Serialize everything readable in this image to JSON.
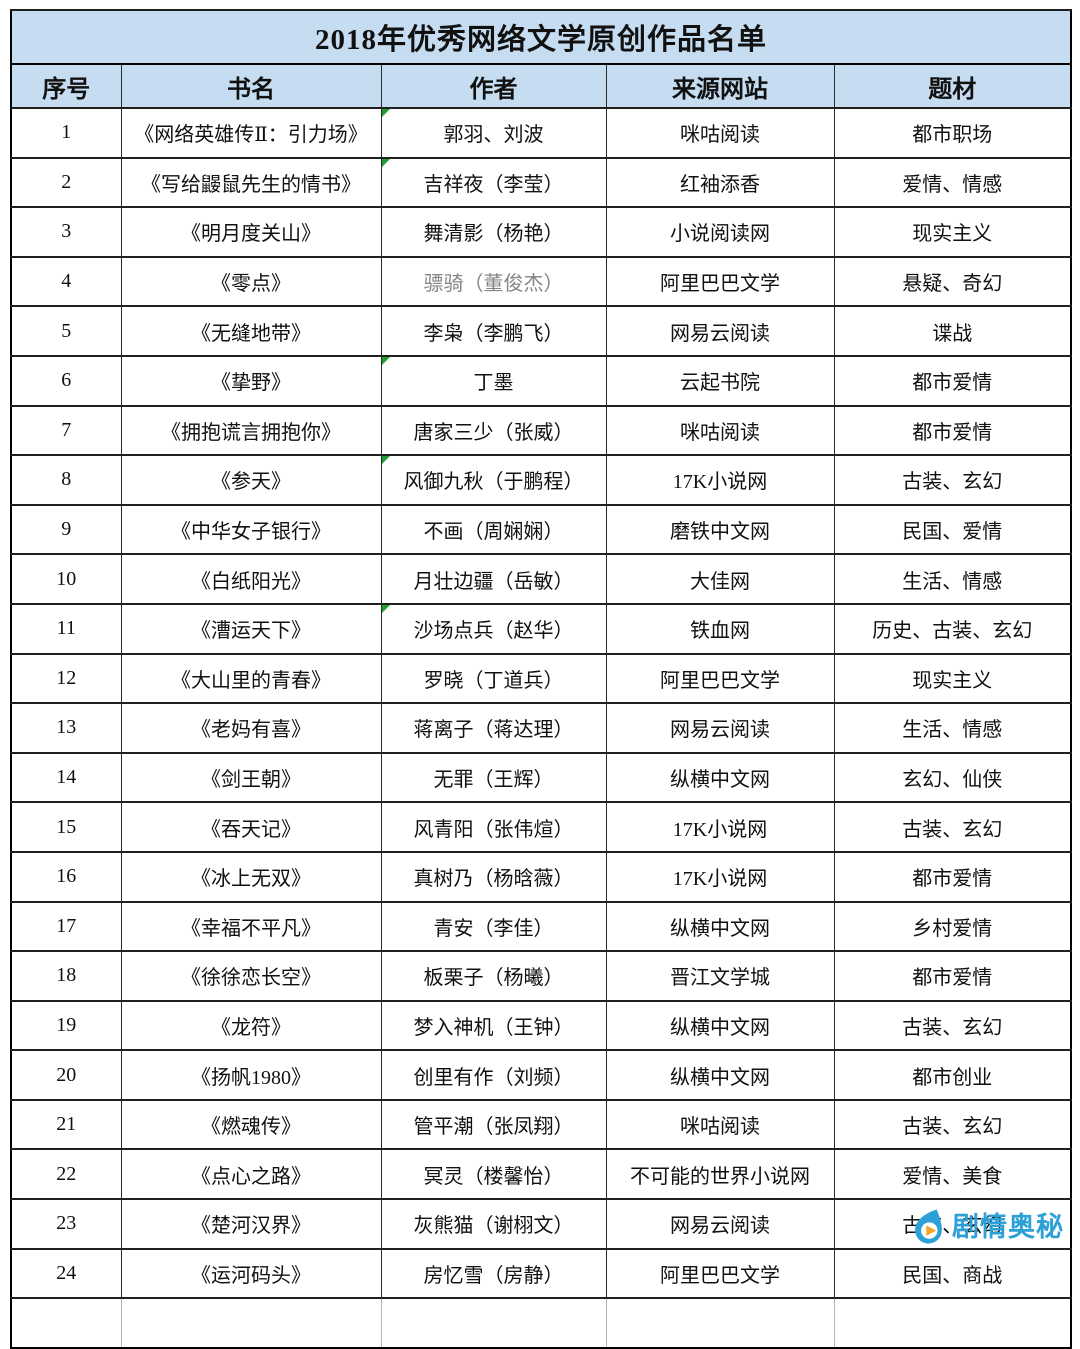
{
  "table": {
    "title": "2018年优秀网络文学原创作品名单",
    "header_bg": "#c6dcf0",
    "border_color": "#000000",
    "columns": [
      "序号",
      "书名",
      "作者",
      "来源网站",
      "题材"
    ],
    "rows": [
      {
        "no": "1",
        "book": "《网络英雄传Ⅱ：引力场》",
        "author": "郭羽、刘波",
        "site": "咪咕阅读",
        "genre": "都市职场",
        "tri": true
      },
      {
        "no": "2",
        "book": "《写给鼹鼠先生的情书》",
        "author": "吉祥夜（李莹）",
        "site": "红袖添香",
        "genre": "爱情、情感",
        "tri": true
      },
      {
        "no": "3",
        "book": "《明月度关山》",
        "author": "舞清影（杨艳）",
        "site": "小说阅读网",
        "genre": "现实主义"
      },
      {
        "no": "4",
        "book": "《零点》",
        "author": "骠骑（董俊杰）",
        "site": "阿里巴巴文学",
        "genre": "悬疑、奇幻",
        "muted": true
      },
      {
        "no": "5",
        "book": "《无缝地带》",
        "author": "李枭（李鹏飞）",
        "site": "网易云阅读",
        "genre": "谍战"
      },
      {
        "no": "6",
        "book": "《挚野》",
        "author": "丁墨",
        "site": "云起书院",
        "genre": "都市爱情",
        "tri": true
      },
      {
        "no": "7",
        "book": "《拥抱谎言拥抱你》",
        "author": "唐家三少（张威）",
        "site": "咪咕阅读",
        "genre": "都市爱情"
      },
      {
        "no": "8",
        "book": "《参天》",
        "author": "风御九秋（于鹏程）",
        "site": "17K小说网",
        "genre": "古装、玄幻",
        "tri": true
      },
      {
        "no": "9",
        "book": "《中华女子银行》",
        "author": "不画（周娴娴）",
        "site": "磨铁中文网",
        "genre": "民国、爱情"
      },
      {
        "no": "10",
        "book": "《白纸阳光》",
        "author": "月壮边疆（岳敏）",
        "site": "大佳网",
        "genre": "生活、情感"
      },
      {
        "no": "11",
        "book": "《漕运天下》",
        "author": "沙场点兵（赵华）",
        "site": "铁血网",
        "genre": "历史、古装、玄幻",
        "tri": true
      },
      {
        "no": "12",
        "book": "《大山里的青春》",
        "author": "罗晓（丁道兵）",
        "site": "阿里巴巴文学",
        "genre": "现实主义"
      },
      {
        "no": "13",
        "book": "《老妈有喜》",
        "author": "蒋离子（蒋达理）",
        "site": "网易云阅读",
        "genre": "生活、情感"
      },
      {
        "no": "14",
        "book": "《剑王朝》",
        "author": "无罪（王辉）",
        "site": "纵横中文网",
        "genre": "玄幻、仙侠"
      },
      {
        "no": "15",
        "book": "《吞天记》",
        "author": "风青阳（张伟煊）",
        "site": "17K小说网",
        "genre": "古装、玄幻"
      },
      {
        "no": "16",
        "book": "《冰上无双》",
        "author": "真树乃（杨晗薇）",
        "site": "17K小说网",
        "genre": "都市爱情"
      },
      {
        "no": "17",
        "book": "《幸福不平凡》",
        "author": "青安（李佳）",
        "site": "纵横中文网",
        "genre": "乡村爱情"
      },
      {
        "no": "18",
        "book": "《徐徐恋长空》",
        "author": "板栗子（杨曦）",
        "site": "晋江文学城",
        "genre": "都市爱情"
      },
      {
        "no": "19",
        "book": "《龙符》",
        "author": "梦入神机（王钟）",
        "site": "纵横中文网",
        "genre": "古装、玄幻"
      },
      {
        "no": "20",
        "book": "《扬帆1980》",
        "author": "创里有作（刘频）",
        "site": "纵横中文网",
        "genre": "都市创业"
      },
      {
        "no": "21",
        "book": "《燃魂传》",
        "author": "管平潮（张凤翔）",
        "site": "咪咕阅读",
        "genre": "古装、玄幻"
      },
      {
        "no": "22",
        "book": "《点心之路》",
        "author": "冥灵（楼馨怡）",
        "site": "不可能的世界小说网",
        "genre": "爱情、美食"
      },
      {
        "no": "23",
        "book": "《楚河汉界》",
        "author": "灰熊猫（谢栩文）",
        "site": "网易云阅读",
        "genre": "古装、玄幻"
      },
      {
        "no": "24",
        "book": "《运河码头》",
        "author": "房忆雪（房静）",
        "site": "阿里巴巴文学",
        "genre": "民国、商战"
      }
    ]
  },
  "watermark": {
    "text": "剧情奥秘",
    "color": "#2da0d8",
    "icon": "droplet-play-icon",
    "icon_accent": "#f5a623"
  }
}
